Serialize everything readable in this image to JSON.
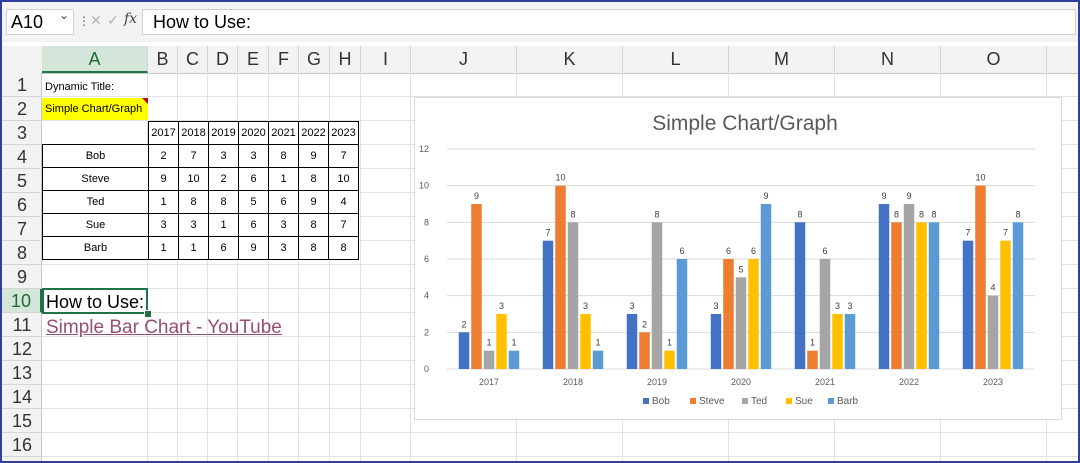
{
  "formula_bar": {
    "name_box": "A10",
    "cancel_symbol": "✕",
    "enter_symbol": "✓",
    "fx_label": "fx",
    "formula": "How to Use:"
  },
  "columns": [
    "A",
    "B",
    "C",
    "D",
    "E",
    "F",
    "G",
    "H",
    "I",
    "J",
    "K",
    "L",
    "M",
    "N",
    "O"
  ],
  "rows": [
    "1",
    "2",
    "3",
    "4",
    "5",
    "6",
    "7",
    "8",
    "9",
    "10",
    "11",
    "12",
    "13",
    "14",
    "15",
    "16"
  ],
  "sheet": {
    "a1": "Dynamic Title:",
    "a2": "Simple Chart/Graph",
    "a10": "How to Use:",
    "a11_link": "Simple Bar Chart - YouTube",
    "years": [
      "2017",
      "2018",
      "2019",
      "2020",
      "2021",
      "2022",
      "2023"
    ],
    "table": [
      {
        "name": "Bob",
        "values": [
          "2",
          "7",
          "3",
          "3",
          "8",
          "9",
          "7"
        ]
      },
      {
        "name": "Steve",
        "values": [
          "9",
          "10",
          "2",
          "6",
          "1",
          "8",
          "10"
        ]
      },
      {
        "name": "Ted",
        "values": [
          "1",
          "8",
          "8",
          "5",
          "6",
          "9",
          "4"
        ]
      },
      {
        "name": "Sue",
        "values": [
          "3",
          "3",
          "1",
          "6",
          "3",
          "8",
          "7"
        ]
      },
      {
        "name": "Barb",
        "values": [
          "1",
          "1",
          "6",
          "9",
          "3",
          "8",
          "8"
        ]
      }
    ]
  },
  "colors": {
    "Bob": "#4472c4",
    "Steve": "#ed7d31",
    "Ted": "#a5a5a5",
    "Sue": "#ffc000",
    "Barb": "#5b9bd5",
    "highlight": "#ffff00",
    "link": "#954f72"
  },
  "chart_data": {
    "type": "bar",
    "title": "Simple Chart/Graph",
    "categories": [
      "2017",
      "2018",
      "2019",
      "2020",
      "2021",
      "2022",
      "2023"
    ],
    "series": [
      {
        "name": "Bob",
        "values": [
          2,
          7,
          3,
          3,
          8,
          9,
          7
        ]
      },
      {
        "name": "Steve",
        "values": [
          9,
          10,
          2,
          6,
          1,
          8,
          10
        ]
      },
      {
        "name": "Ted",
        "values": [
          1,
          8,
          8,
          5,
          6,
          9,
          4
        ]
      },
      {
        "name": "Sue",
        "values": [
          3,
          3,
          1,
          6,
          3,
          8,
          7
        ]
      },
      {
        "name": "Barb",
        "values": [
          1,
          1,
          6,
          9,
          3,
          8,
          8
        ]
      }
    ],
    "ylim": [
      0,
      12
    ],
    "yticks": [
      "0",
      "2",
      "4",
      "6",
      "8",
      "10",
      "12"
    ],
    "grid": true,
    "legend": "bottom",
    "xlabel": "",
    "ylabel": ""
  }
}
